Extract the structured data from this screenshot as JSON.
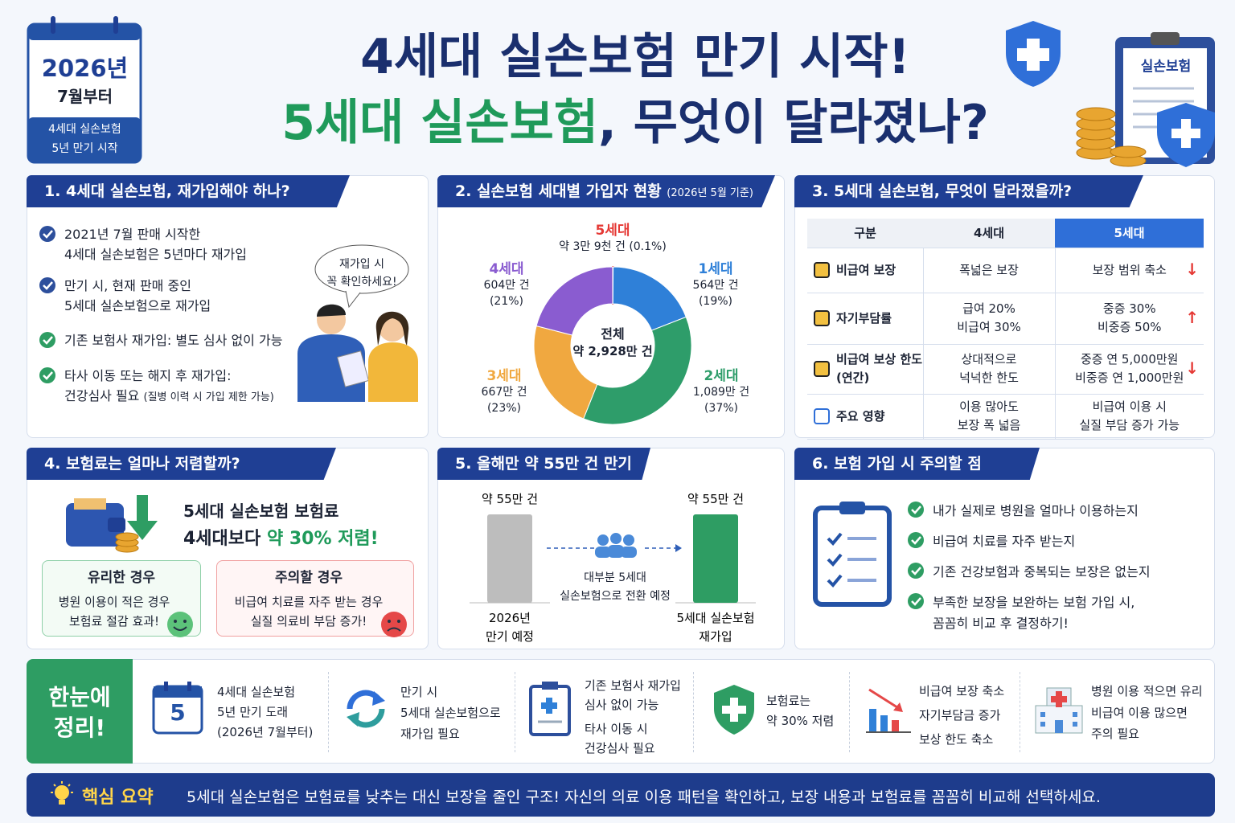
{
  "badge": {
    "year": "2026년",
    "month": "7월부터",
    "note": [
      "4세대 실손보험",
      "5년 만기 시작"
    ]
  },
  "header": {
    "title1": "4세대 실손보험 만기 시작!",
    "title2_green": "5세대 실손보험",
    "title2_rest": ", 무엇이 달라졌나?",
    "clipboard_label": "실손보험"
  },
  "panel1": {
    "title": "1. 4세대 실손보험, 재가입해야 하나?",
    "items": [
      [
        "2021년 7월 판매 시작한",
        "4세대 실손보험은 5년마다 재가입"
      ],
      [
        "만기 시, 현재 판매 중인",
        "5세대 실손보험으로 재가입"
      ],
      [
        "기존 보험사 재가입: 별도 심사 없이 가능"
      ],
      [
        "타사 이동 또는 해지 후 재가입:",
        "건강심사 필요"
      ]
    ],
    "item4_note": "(질병 이력 시 가입 제한 가능)",
    "bubble": [
      "재가입 시",
      "꼭 확인하세요!"
    ]
  },
  "panel2": {
    "title": "2. 실손보험 세대별 가입자 현황",
    "subtitle": "(2026년 5월 기준)",
    "center": [
      "전체",
      "약 2,928만 건"
    ],
    "segments": [
      {
        "name": "5세대",
        "count": "약 3만 9천 건",
        "percent": 0.1,
        "percent_label": "(0.1%)",
        "color": "#e53935"
      },
      {
        "name": "1세대",
        "count": "564만 건",
        "percent": 19,
        "percent_label": "(19%)",
        "color": "#2f80d8"
      },
      {
        "name": "2세대",
        "count": "1,089만 건",
        "percent": 37,
        "percent_label": "(37%)",
        "color": "#2e9d6a"
      },
      {
        "name": "3세대",
        "count": "667만 건",
        "percent": 23,
        "percent_label": "(23%)",
        "color": "#f0a840"
      },
      {
        "name": "4세대",
        "count": "604만 건",
        "percent": 21,
        "percent_label": "(21%)",
        "color": "#8a5cd0"
      }
    ]
  },
  "panel3": {
    "title": "3. 5세대 실손보험, 무엇이 달라졌을까?",
    "header": [
      "구분",
      "4세대",
      "5세대"
    ],
    "rows": [
      [
        [
          "비급여 보장"
        ],
        [
          "폭넓은 보장"
        ],
        [
          "보장 범위 축소"
        ]
      ],
      [
        [
          "자기부담률"
        ],
        [
          "급여 20%",
          "비급여 30%"
        ],
        [
          "중증 30%",
          "비중증 50%"
        ]
      ],
      [
        [
          "비급여 보상 한도",
          "(연간)"
        ],
        [
          "상대적으로",
          "넉넉한 한도"
        ],
        [
          "중증 연 5,000만원",
          "비중증 연 1,000만원"
        ]
      ],
      [
        [
          "주요 영향"
        ],
        [
          "이용 많아도",
          "보장 폭 넓음"
        ],
        [
          "비급여 이용 시",
          "실질 부담 증가 가능"
        ]
      ]
    ]
  },
  "panel4": {
    "title": "4. 보험료는 얼마나 저렴할까?",
    "lead1": "5세대 실손보험 보험료",
    "lead2": "4세대보다 ",
    "lead2_green": "약 30% 저렴!",
    "good": {
      "title": "유리한 경우",
      "lines": [
        "병원 이용이 적은 경우",
        "보험료 절감 효과!"
      ]
    },
    "caution": {
      "title": "주의할 경우",
      "lines": [
        "비급여 치료를 자주 받는 경우",
        "실질 의료비 부담 증가!"
      ]
    }
  },
  "panel5": {
    "title": "5. 올해만 약 55만 건 만기",
    "values": [
      55,
      55
    ],
    "value_labels": [
      "약 55만 건",
      "약 55만 건"
    ],
    "labels": [
      [
        "2026년",
        "만기 예정"
      ],
      [
        "5세대 실손보험",
        "재가입"
      ]
    ],
    "middle": [
      "대부분 5세대",
      "실손보험으로 전환 예정"
    ]
  },
  "panel6": {
    "title": "6. 보험 가입 시 주의할 점",
    "items": [
      [
        "내가 실제로 병원을 얼마나 이용하는지"
      ],
      [
        "비급여 치료를 자주 받는지"
      ],
      [
        "기존 건강보험과 중복되는 보장은 없는지"
      ],
      [
        "부족한 보장을 보완하는 보험 가입 시,",
        "꼼꼼히 비교 후 결정하기!"
      ]
    ]
  },
  "summary": {
    "label": [
      "한눈에",
      "정리!"
    ],
    "calendar_day": "5",
    "items": [
      [
        "4세대 실손보험",
        "5년 만기 도래",
        "(2026년 7월부터)"
      ],
      [
        "만기 시",
        "5세대 실손보험으로",
        "재가입 필요"
      ],
      [
        "기존 보험사 재가입",
        "심사 없이 가능",
        "타사 이동 시",
        "건강심사 필요"
      ],
      [
        "보험료는",
        "약 30% 저렴"
      ],
      [
        "비급여 보장 축소",
        "자기부담금 증가",
        "보상 한도 축소"
      ],
      [
        "병원 이용 적으면 유리",
        "비급여 이용 많으면",
        "주의 필요"
      ]
    ]
  },
  "footer": {
    "label": "핵심 요약",
    "text": "5세대 실손보험은 보험료를 낮추는 대신 보장을 줄인 구조! 자신의 의료 이용 패턴을 확인하고, 보장 내용과 보험료를 꼼꼼히 비교해 선택하세요."
  }
}
